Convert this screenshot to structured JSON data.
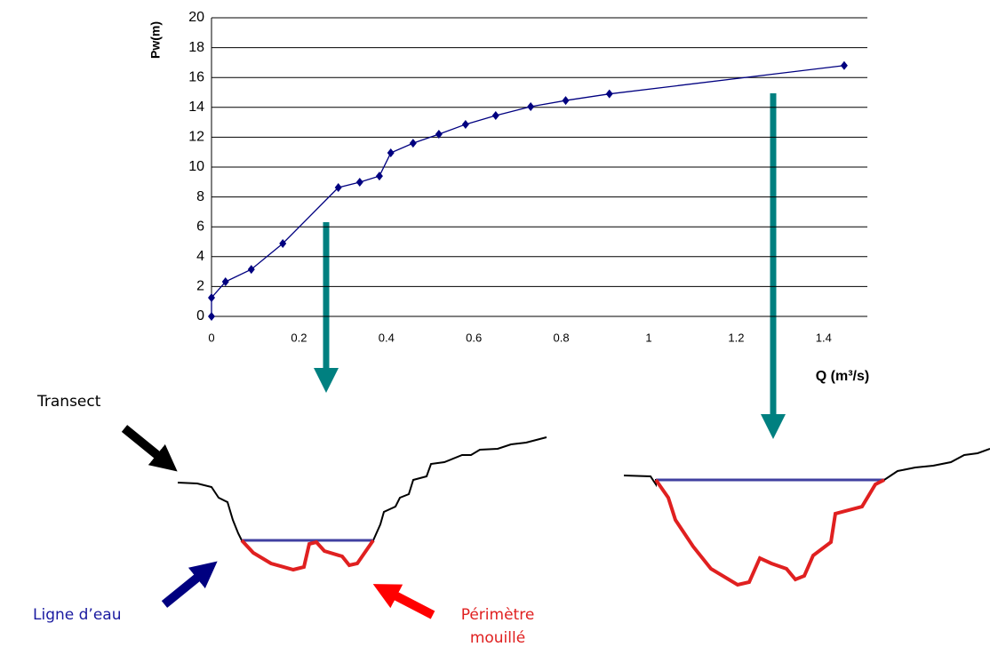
{
  "chart_data": {
    "type": "line",
    "y_label": "Pw(m)",
    "x_label": "Q (m³/s)",
    "x": [
      0,
      0,
      0.032,
      0.091,
      0.163,
      0.29,
      0.339,
      0.384,
      0.41,
      0.461,
      0.52,
      0.581,
      0.65,
      0.73,
      0.81,
      0.91,
      1.447
    ],
    "values": [
      0,
      1.25,
      2.32,
      3.15,
      4.88,
      8.63,
      8.99,
      9.4,
      10.95,
      11.6,
      12.2,
      12.86,
      13.45,
      14.05,
      14.46,
      14.9,
      16.8
    ],
    "color": "#000080",
    "xlim": [
      0,
      1.5
    ],
    "xticks": [
      0,
      0.2,
      0.4,
      0.6,
      0.8,
      1,
      1.2,
      1.4
    ],
    "ylim": [
      0,
      20
    ],
    "yticks": [
      0,
      2,
      4,
      6,
      8,
      10,
      12,
      14,
      16,
      18,
      20
    ],
    "grid": true,
    "annotations": [
      "Transect",
      "Ligne d’eau",
      "Périmètre",
      "mouillé"
    ]
  }
}
